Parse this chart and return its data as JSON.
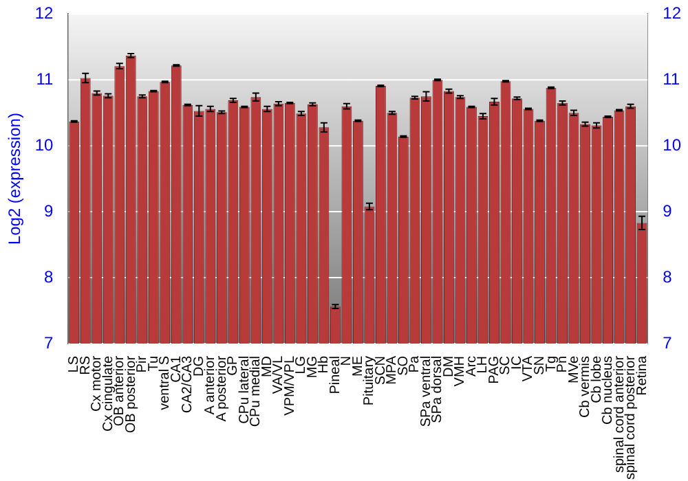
{
  "chart_data": {
    "type": "bar",
    "ylabel": "Log2 (expression)",
    "categories": [
      "LS",
      "RS",
      "Cx motor",
      "Cx cingulate",
      "OB anterior",
      "OB posterior",
      "Pir",
      "Tu",
      "ventral S",
      "CA1",
      "CA2/CA3",
      "DG",
      "A anterior",
      "A posterior",
      "GP",
      "CPu lateral",
      "CPu medial",
      "MD",
      "VA/VL",
      "VPM/VPL",
      "LG",
      "MG",
      "Hb",
      "Pineal",
      "N",
      "ME",
      "Pituitary",
      "SCN",
      "MPA",
      "SO",
      "Pa",
      "SPa ventral",
      "SPa dorsal",
      "DM",
      "VMH",
      "Arc",
      "LH",
      "PAG",
      "SC",
      "IC",
      "VTA",
      "SN",
      "Tg",
      "Pn",
      "MVe",
      "Cb vermis",
      "Cb lobe",
      "Cb nucleus",
      "spinal cord anterior",
      "spinal cord posterior",
      "Retina"
    ],
    "values": [
      10.37,
      11.03,
      10.8,
      10.76,
      11.21,
      11.37,
      10.75,
      10.83,
      10.97,
      11.22,
      10.62,
      10.53,
      10.56,
      10.51,
      10.69,
      10.59,
      10.74,
      10.56,
      10.64,
      10.65,
      10.49,
      10.63,
      10.28,
      7.56,
      10.6,
      10.38,
      9.08,
      10.91,
      10.5,
      10.14,
      10.73,
      10.75,
      11.0,
      10.83,
      10.74,
      10.59,
      10.45,
      10.67,
      10.98,
      10.72,
      10.56,
      10.38,
      10.88,
      10.65,
      10.5,
      10.33,
      10.31,
      10.44,
      10.54,
      10.6,
      8.83
    ],
    "errors": [
      0.01,
      0.07,
      0.03,
      0.03,
      0.04,
      0.03,
      0.02,
      0.01,
      0.01,
      0.01,
      0.01,
      0.08,
      0.04,
      0.02,
      0.03,
      0.01,
      0.06,
      0.04,
      0.03,
      0.01,
      0.03,
      0.02,
      0.07,
      0.03,
      0.04,
      0.01,
      0.05,
      0.01,
      0.02,
      0.01,
      0.02,
      0.07,
      0.01,
      0.03,
      0.02,
      0.01,
      0.04,
      0.05,
      0.01,
      0.02,
      0.01,
      0.01,
      0.01,
      0.03,
      0.04,
      0.03,
      0.04,
      0.01,
      0.01,
      0.03,
      0.1
    ],
    "color": "#b83a3a",
    "ylim": [
      7,
      12
    ],
    "yticks": [
      7,
      8,
      9,
      10,
      11,
      12
    ],
    "y2lim": [
      7,
      12
    ],
    "y2ticks": [
      7,
      8,
      9,
      10,
      11,
      12
    ],
    "grid": "y",
    "legend": false
  }
}
